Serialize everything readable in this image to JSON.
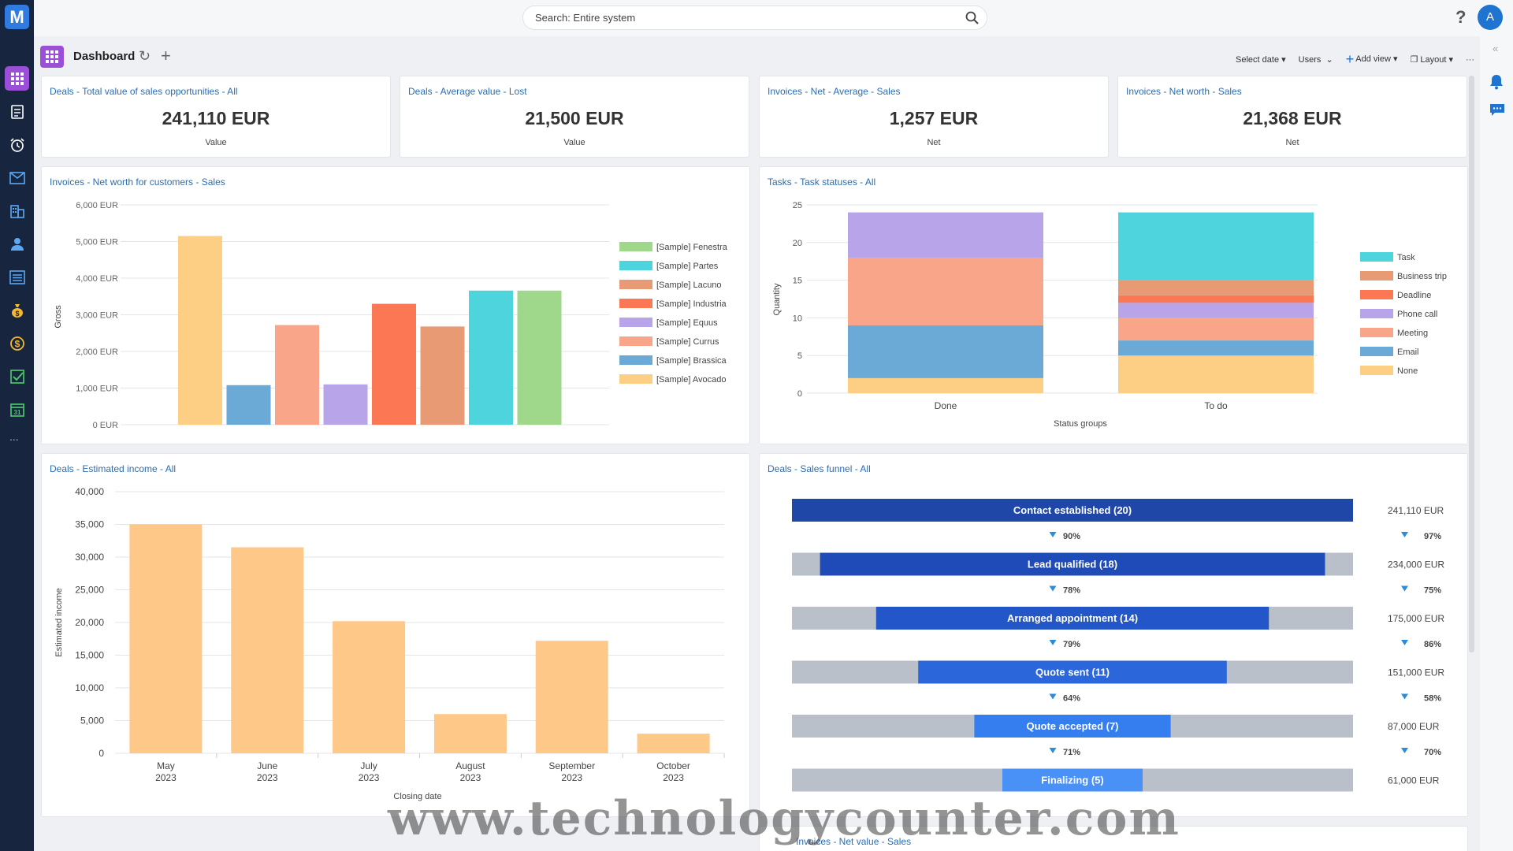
{
  "app": {
    "logo_letter": "M",
    "search_placeholder": "Search: Entire system",
    "help": "?",
    "avatar": "A",
    "more": "..."
  },
  "sidebar": {
    "items": [
      {
        "icon": "dashboard-icon",
        "active": true
      },
      {
        "icon": "news-icon"
      },
      {
        "icon": "alarm-clock-icon"
      },
      {
        "icon": "mail-icon"
      },
      {
        "icon": "companies-icon"
      },
      {
        "icon": "contacts-icon"
      },
      {
        "icon": "list-icon"
      },
      {
        "icon": "money-bag-icon"
      },
      {
        "icon": "dollar-icon"
      },
      {
        "icon": "tasks-check-icon"
      },
      {
        "icon": "calendar-icon",
        "text": "31"
      }
    ]
  },
  "header": {
    "title": "Dashboard",
    "select_date": "Select date",
    "users": "Users",
    "add_view": "Add view",
    "layout": "Layout",
    "more": "···"
  },
  "kpis": [
    {
      "title": "Deals - Total value of sales opportunities - All",
      "value": "241,110 EUR",
      "label": "Value"
    },
    {
      "title": "Deals - Average value - Lost",
      "value": "21,500 EUR",
      "label": "Value"
    },
    {
      "title": "Invoices - Net - Average - Sales",
      "value": "1,257 EUR",
      "label": "Net"
    },
    {
      "title": "Invoices - Net worth - Sales",
      "value": "21,368 EUR",
      "label": "Net"
    }
  ],
  "colors": {
    "accent": "#9a4fd6",
    "link": "#2b6db3",
    "funnel_dark": "#1f47a8",
    "funnel_track": "#b9c0c9",
    "bar_orange": "#fdc888"
  },
  "chart_data": [
    {
      "type": "bar",
      "title": "Invoices - Net worth for customers - Sales",
      "ylabel": "Gross",
      "ylim": [
        0,
        6000
      ],
      "yticks": [
        "0 EUR",
        "1,000 EUR",
        "2,000 EUR",
        "3,000 EUR",
        "4,000 EUR",
        "5,000 EUR",
        "6,000 EUR"
      ],
      "series": [
        {
          "name": "[Sample] Avocado",
          "value": 5150,
          "color": "#fdcf85"
        },
        {
          "name": "[Sample] Brassica",
          "value": 1080,
          "color": "#6baad6"
        },
        {
          "name": "[Sample] Currus",
          "value": 2720,
          "color": "#f9a58a"
        },
        {
          "name": "[Sample] Equus",
          "value": 1100,
          "color": "#b8a4e8"
        },
        {
          "name": "[Sample] Industria",
          "value": 3300,
          "color": "#fc7753"
        },
        {
          "name": "[Sample] Lacuno",
          "value": 2680,
          "color": "#e89a74"
        },
        {
          "name": "[Sample] Partes",
          "value": 3660,
          "color": "#4dd4dc"
        },
        {
          "name": "[Sample] Fenestra",
          "value": 3660,
          "color": "#9fd88b"
        }
      ],
      "legend_order": [
        "[Sample] Fenestra",
        "[Sample] Partes",
        "[Sample] Lacuno",
        "[Sample] Industria",
        "[Sample] Equus",
        "[Sample] Currus",
        "[Sample] Brassica",
        "[Sample] Avocado"
      ],
      "legend": "right"
    },
    {
      "type": "bar",
      "stacked": true,
      "title": "Tasks - Task statuses - All",
      "xlabel": "Status groups",
      "ylabel": "Quantity",
      "ylim": [
        0,
        25
      ],
      "yticks": [
        "0",
        "5",
        "10",
        "15",
        "20",
        "25"
      ],
      "categories": [
        "Done",
        "To do"
      ],
      "series": [
        {
          "name": "None",
          "values": [
            2,
            5
          ],
          "color": "#fdcf85"
        },
        {
          "name": "Email",
          "values": [
            7,
            2
          ],
          "color": "#6baad6"
        },
        {
          "name": "Meeting",
          "values": [
            9,
            3
          ],
          "color": "#f9a58a"
        },
        {
          "name": "Phone call",
          "values": [
            6,
            2
          ],
          "color": "#b8a4e8"
        },
        {
          "name": "Deadline",
          "values": [
            0,
            1
          ],
          "color": "#fc7753"
        },
        {
          "name": "Business trip",
          "values": [
            0,
            2
          ],
          "color": "#e89a74"
        },
        {
          "name": "Task",
          "values": [
            0,
            9
          ],
          "color": "#4dd4dc"
        }
      ],
      "legend_order": [
        "Task",
        "Business trip",
        "Deadline",
        "Phone call",
        "Meeting",
        "Email",
        "None"
      ],
      "legend": "right"
    },
    {
      "type": "bar",
      "title": "Deals - Estimated income - All",
      "xlabel": "Closing date",
      "ylabel": "Estimated income",
      "ylim": [
        0,
        40000
      ],
      "yticks": [
        "0",
        "5,000",
        "10,000",
        "15,000",
        "20,000",
        "25,000",
        "30,000",
        "35,000",
        "40,000"
      ],
      "categories": [
        [
          "May",
          "2023"
        ],
        [
          "June",
          "2023"
        ],
        [
          "July",
          "2023"
        ],
        [
          "August",
          "2023"
        ],
        [
          "September",
          "2023"
        ],
        [
          "October",
          "2023"
        ]
      ],
      "values": [
        35000,
        31500,
        20200,
        6000,
        17200,
        3000
      ]
    },
    {
      "type": "funnel",
      "title": "Deals - Sales funnel - All",
      "stages": [
        {
          "label": "Contact established (20)",
          "count": 20,
          "amount": "241,110 EUR",
          "color": "#1f47a8"
        },
        {
          "label": "Lead qualified (18)",
          "count": 18,
          "amount": "234,000 EUR",
          "color": "#1f4bb8"
        },
        {
          "label": "Arranged appointment (14)",
          "count": 14,
          "amount": "175,000 EUR",
          "color": "#2356c9"
        },
        {
          "label": "Quote sent (11)",
          "count": 11,
          "amount": "151,000 EUR",
          "color": "#2b66db"
        },
        {
          "label": "Quote accepted (7)",
          "count": 7,
          "amount": "87,000 EUR",
          "color": "#347ef0"
        },
        {
          "label": "Finalizing (5)",
          "count": 5,
          "amount": "61,000 EUR",
          "color": "#4a91f7"
        }
      ],
      "conversions_left": [
        "90%",
        "78%",
        "79%",
        "64%",
        "71%"
      ],
      "conversions_right": [
        "97%",
        "75%",
        "86%",
        "58%",
        "70%"
      ]
    }
  ],
  "bottom_card_title": "Invoices - Net value - Sales",
  "watermark": "www.technologycounter.com"
}
